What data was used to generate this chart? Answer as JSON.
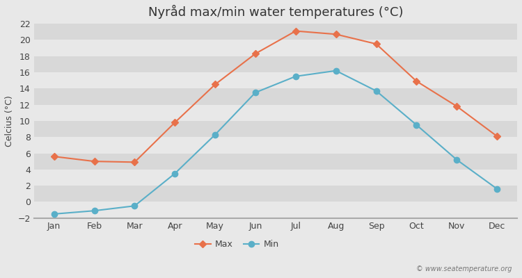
{
  "title": "Nyråd max/min water temperatures (°C)",
  "ylabel": "Celcius (°C)",
  "months": [
    "Jan",
    "Feb",
    "Mar",
    "Apr",
    "May",
    "Jun",
    "Jul",
    "Aug",
    "Sep",
    "Oct",
    "Nov",
    "Dec"
  ],
  "max_values": [
    5.6,
    5.0,
    4.9,
    9.8,
    14.5,
    18.3,
    21.1,
    20.7,
    19.5,
    14.9,
    11.8,
    8.1
  ],
  "min_values": [
    -1.5,
    -1.1,
    -0.5,
    3.5,
    8.3,
    13.5,
    15.5,
    16.2,
    13.7,
    9.5,
    5.2,
    1.6
  ],
  "max_color": "#e8714a",
  "min_color": "#5aafc8",
  "bg_color": "#e8e8e8",
  "band_color_dark": "#d8d8d8",
  "band_color_light": "#e8e8e8",
  "ylim": [
    -2,
    22
  ],
  "yticks": [
    -2,
    0,
    2,
    4,
    6,
    8,
    10,
    12,
    14,
    16,
    18,
    20,
    22
  ],
  "watermark": "© www.seatemperature.org",
  "title_fontsize": 13,
  "label_fontsize": 9,
  "tick_fontsize": 9,
  "legend_labels": [
    "Max",
    "Min"
  ]
}
